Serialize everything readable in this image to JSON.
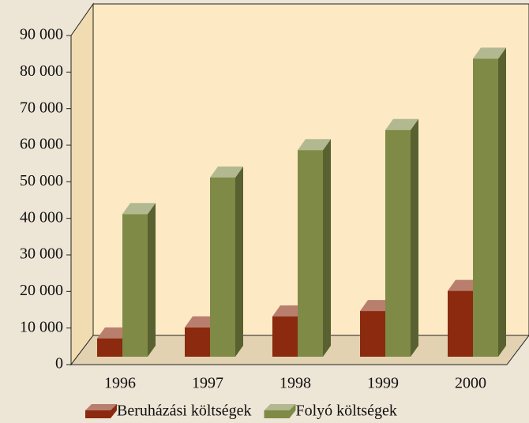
{
  "chart_data": {
    "type": "bar3d",
    "categories": [
      "1996",
      "1997",
      "1998",
      "1999",
      "2000"
    ],
    "series": [
      {
        "name": "Beruházási költségek",
        "color": "#8b2a0e",
        "values": [
          5000,
          8000,
          11000,
          12500,
          18000
        ]
      },
      {
        "name": "Folyó költségek",
        "color": "#7f8a46",
        "values": [
          39000,
          49000,
          56500,
          62000,
          81500
        ]
      }
    ],
    "ylim": [
      0,
      90000
    ],
    "yticks": [
      {
        "value": 0,
        "label": "0"
      },
      {
        "value": 10000,
        "label": "10 000"
      },
      {
        "value": 20000,
        "label": "20 000"
      },
      {
        "value": 30000,
        "label": "30 000"
      },
      {
        "value": 40000,
        "label": "40 000"
      },
      {
        "value": 50000,
        "label": "50 000"
      },
      {
        "value": 60000,
        "label": "60 000"
      },
      {
        "value": 70000,
        "label": "70 000"
      },
      {
        "value": 80000,
        "label": "80 000"
      },
      {
        "value": 90000,
        "label": "90 000"
      }
    ]
  }
}
